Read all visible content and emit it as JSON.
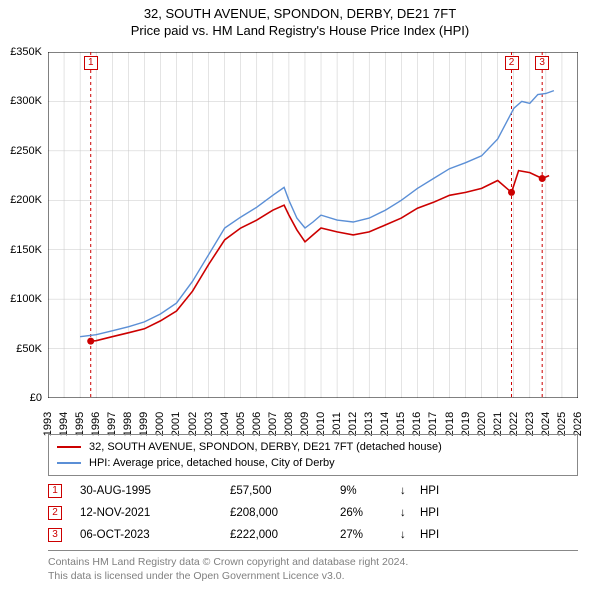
{
  "title": {
    "main": "32, SOUTH AVENUE, SPONDON, DERBY, DE21 7FT",
    "sub": "Price paid vs. HM Land Registry's House Price Index (HPI)"
  },
  "chart": {
    "type": "line",
    "background_color": "#ffffff",
    "grid_color": "#c8c8c8",
    "axis_color": "#000000",
    "x_min": 1993,
    "x_max": 2026,
    "x_ticks": [
      1993,
      1994,
      1995,
      1996,
      1997,
      1998,
      1999,
      2000,
      2001,
      2002,
      2003,
      2004,
      2005,
      2006,
      2007,
      2008,
      2009,
      2010,
      2011,
      2012,
      2013,
      2014,
      2015,
      2016,
      2017,
      2018,
      2019,
      2020,
      2021,
      2022,
      2023,
      2024,
      2025,
      2026
    ],
    "y_min": 0,
    "y_max": 350000,
    "y_ticks": [
      0,
      50000,
      100000,
      150000,
      200000,
      250000,
      300000,
      350000
    ],
    "y_tick_labels": [
      "£0",
      "£50K",
      "£100K",
      "£150K",
      "£200K",
      "£250K",
      "£300K",
      "£350K"
    ],
    "label_fontsize": 11,
    "series": [
      {
        "name": "32, SOUTH AVENUE, SPONDON, DERBY, DE21 7FT (detached house)",
        "color": "#cc0000",
        "width": 1.6,
        "data_x": [
          1995.66,
          1996,
          1997,
          1998,
          1999,
          2000,
          2001,
          2002,
          2003,
          2004,
          2005,
          2006,
          2007,
          2007.7,
          2008,
          2008.5,
          2009,
          2009.5,
          2010,
          2011,
          2012,
          2013,
          2014,
          2015,
          2016,
          2017,
          2018,
          2019,
          2020,
          2021,
          2021.86,
          2022.3,
          2023,
          2023.77,
          2024.2
        ],
        "data_y": [
          57500,
          58000,
          62000,
          66000,
          70000,
          78000,
          88000,
          108000,
          135000,
          160000,
          172000,
          180000,
          190000,
          195000,
          185000,
          170000,
          158000,
          165000,
          172000,
          168000,
          165000,
          168000,
          175000,
          182000,
          192000,
          198000,
          205000,
          208000,
          212000,
          220000,
          208000,
          230000,
          228000,
          222000,
          225000
        ]
      },
      {
        "name": "HPI: Average price, detached house, City of Derby",
        "color": "#5b8fd6",
        "width": 1.4,
        "data_x": [
          1995,
          1996,
          1997,
          1998,
          1999,
          2000,
          2001,
          2002,
          2003,
          2004,
          2005,
          2006,
          2007,
          2007.7,
          2008,
          2008.5,
          2009,
          2009.5,
          2010,
          2011,
          2012,
          2013,
          2014,
          2015,
          2016,
          2017,
          2018,
          2019,
          2020,
          2021,
          2022,
          2022.5,
          2023,
          2023.5,
          2024,
          2024.5
        ],
        "data_y": [
          62000,
          64000,
          68000,
          72000,
          77000,
          85000,
          96000,
          118000,
          145000,
          172000,
          183000,
          193000,
          205000,
          213000,
          200000,
          182000,
          172000,
          178000,
          185000,
          180000,
          178000,
          182000,
          190000,
          200000,
          212000,
          222000,
          232000,
          238000,
          245000,
          262000,
          293000,
          300000,
          298000,
          307000,
          308000,
          311000
        ]
      }
    ],
    "sale_markers": [
      {
        "n": "1",
        "x": 1995.66,
        "y": 57500,
        "color": "#cc0000",
        "vline_color": "#cc0000"
      },
      {
        "n": "2",
        "x": 2021.86,
        "y": 208000,
        "color": "#cc0000",
        "vline_color": "#cc0000"
      },
      {
        "n": "3",
        "x": 2023.77,
        "y": 222000,
        "color": "#cc0000",
        "vline_color": "#cc0000"
      }
    ]
  },
  "legend": {
    "items": [
      {
        "label": "32, SOUTH AVENUE, SPONDON, DERBY, DE21 7FT (detached house)",
        "color": "#cc0000"
      },
      {
        "label": "HPI: Average price, detached house, City of Derby",
        "color": "#5b8fd6"
      }
    ]
  },
  "sales": [
    {
      "n": "1",
      "date": "30-AUG-1995",
      "price": "£57,500",
      "pct": "9%",
      "arrow": "↓",
      "label": "HPI",
      "color": "#cc0000"
    },
    {
      "n": "2",
      "date": "12-NOV-2021",
      "price": "£208,000",
      "pct": "26%",
      "arrow": "↓",
      "label": "HPI",
      "color": "#cc0000"
    },
    {
      "n": "3",
      "date": "06-OCT-2023",
      "price": "£222,000",
      "pct": "27%",
      "arrow": "↓",
      "label": "HPI",
      "color": "#cc0000"
    }
  ],
  "footer": {
    "line1": "Contains HM Land Registry data © Crown copyright and database right 2024.",
    "line2": "This data is licensed under the Open Government Licence v3.0."
  }
}
